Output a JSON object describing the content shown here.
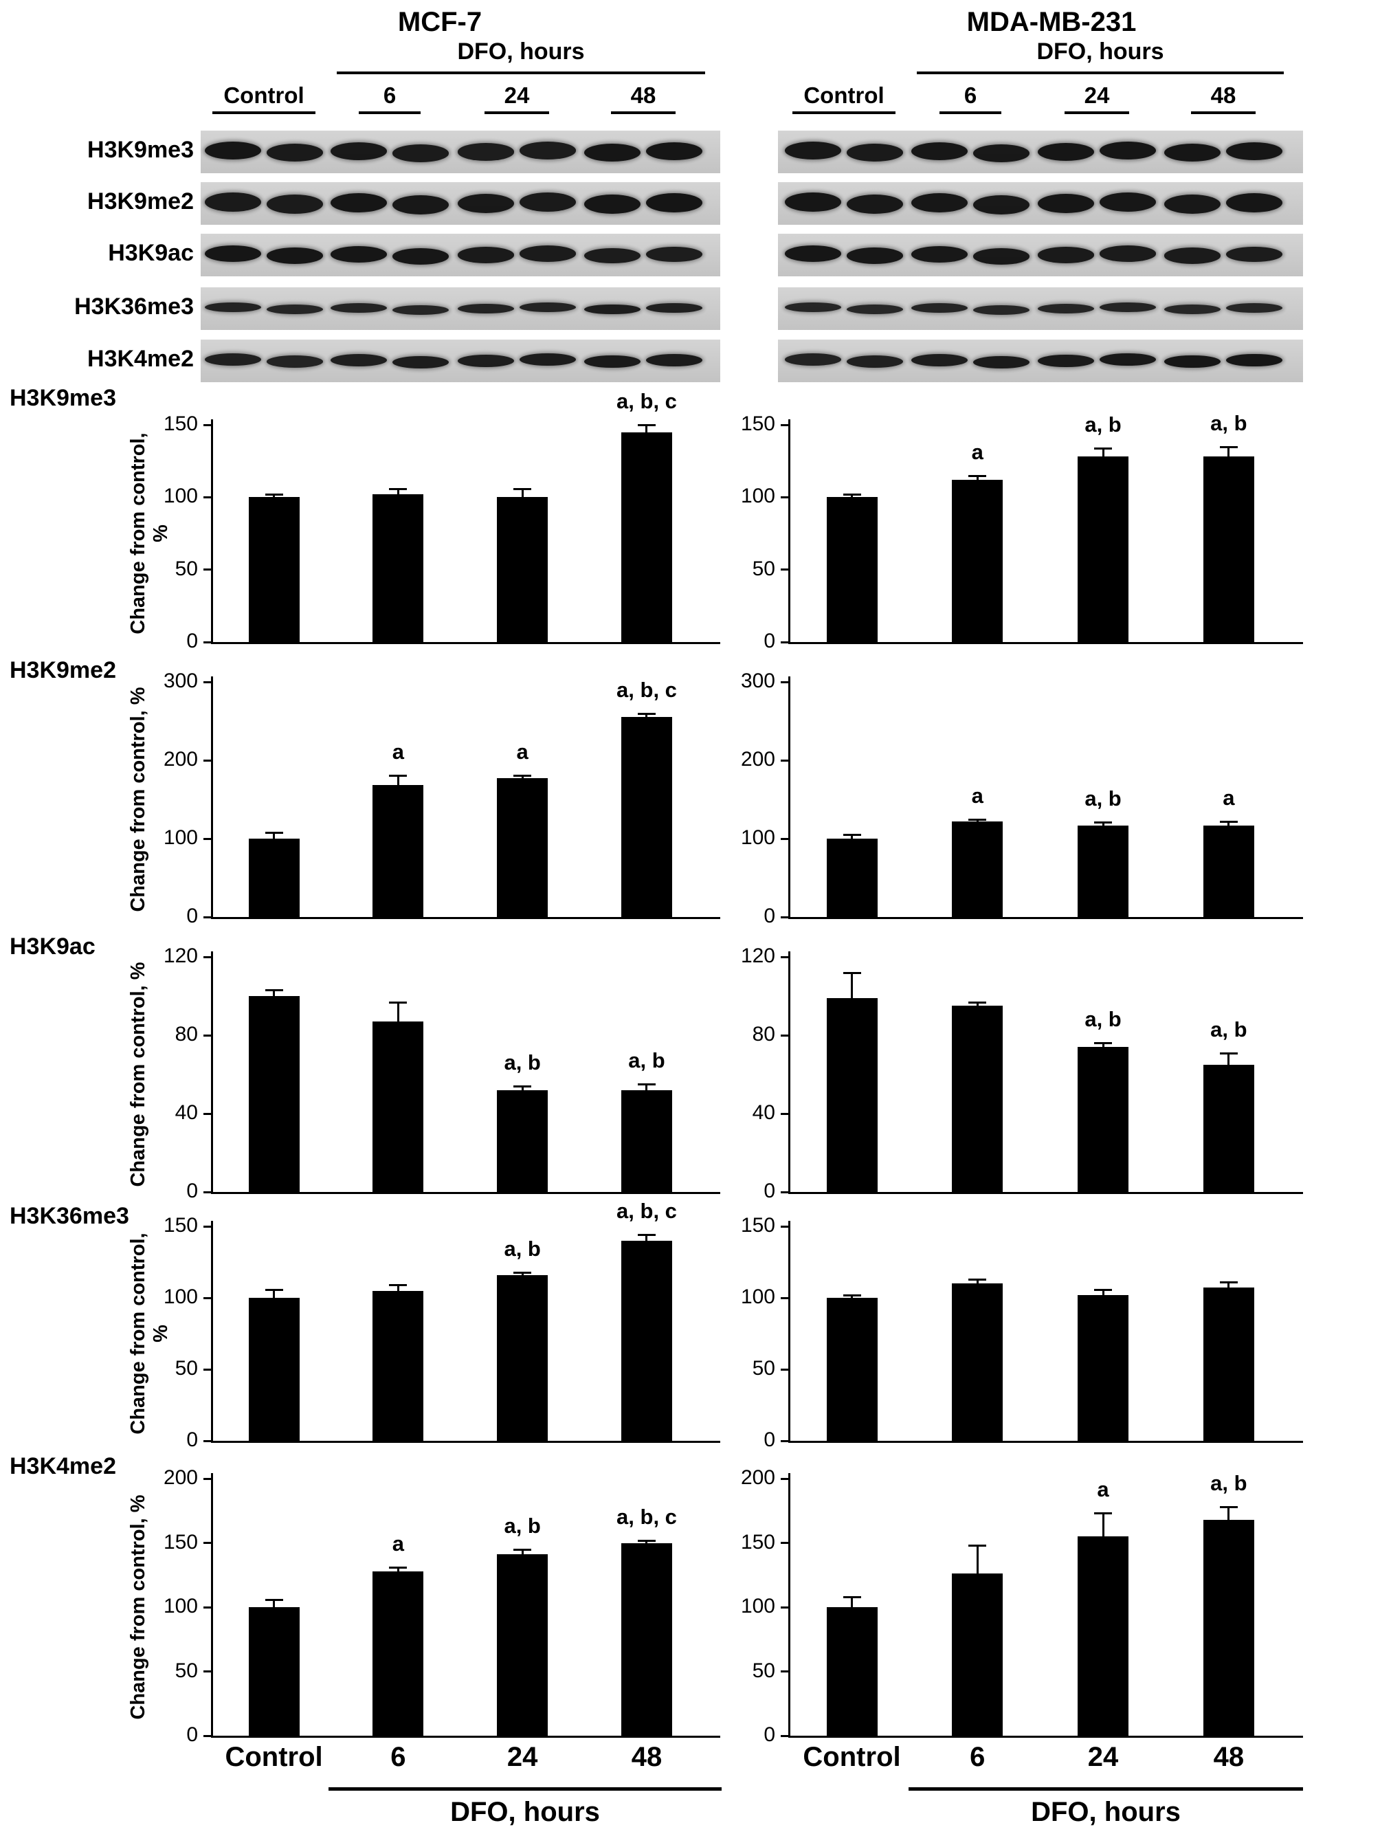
{
  "header": {
    "left_title": "MCF-7",
    "right_title": "MDA-MB-231",
    "dfo_label": "DFO, hours",
    "lanes": [
      "Control",
      "6",
      "24",
      "48"
    ]
  },
  "blots": {
    "rows": [
      {
        "label": "H3K9me3",
        "left": [
          0.95,
          0.9,
          0.92,
          0.88,
          0.85,
          0.86,
          0.97,
          0.96
        ],
        "right": [
          0.93,
          0.9,
          0.94,
          0.92,
          0.96,
          0.97,
          0.95,
          0.96
        ]
      },
      {
        "label": "H3K9me2",
        "left": [
          0.9,
          0.88,
          0.95,
          0.93,
          0.92,
          0.9,
          0.97,
          0.98
        ],
        "right": [
          0.95,
          0.93,
          0.94,
          0.92,
          0.95,
          0.94,
          0.93,
          0.95
        ]
      },
      {
        "label": "H3K9ac",
        "left": [
          0.97,
          0.96,
          0.95,
          0.94,
          0.9,
          0.88,
          0.86,
          0.85
        ],
        "right": [
          0.95,
          0.94,
          0.93,
          0.92,
          0.9,
          0.89,
          0.88,
          0.87
        ]
      },
      {
        "label": "H3K36me3",
        "left": [
          0.75,
          0.72,
          0.74,
          0.73,
          0.76,
          0.75,
          0.85,
          0.8
        ],
        "right": [
          0.72,
          0.7,
          0.73,
          0.71,
          0.72,
          0.74,
          0.7,
          0.71
        ]
      },
      {
        "label": "H3K4me2",
        "left": [
          0.8,
          0.75,
          0.82,
          0.85,
          0.84,
          0.86,
          0.9,
          0.88
        ],
        "right": [
          0.78,
          0.8,
          0.85,
          0.88,
          0.9,
          0.92,
          0.95,
          0.96
        ]
      }
    ]
  },
  "chart_data": [
    {
      "type": "bar",
      "row_label": "H3K9me3",
      "ylabel": "Change from control, %",
      "categories": [
        "Control",
        "6",
        "24",
        "48"
      ],
      "ylim": [
        0,
        150
      ],
      "yticks": [
        0,
        50,
        100,
        150
      ],
      "panels": [
        {
          "name": "MCF-7",
          "values": [
            100,
            102,
            100,
            145
          ],
          "errors": [
            2,
            4,
            6,
            5
          ],
          "annotations": [
            "",
            "",
            "",
            "a, b, c"
          ]
        },
        {
          "name": "MDA-MB-231",
          "values": [
            100,
            112,
            128,
            128
          ],
          "errors": [
            2,
            3,
            6,
            7
          ],
          "annotations": [
            "",
            "a",
            "a, b",
            "a, b"
          ]
        }
      ]
    },
    {
      "type": "bar",
      "row_label": "H3K9me2",
      "ylabel": "Change from control, %",
      "categories": [
        "Control",
        "6",
        "24",
        "48"
      ],
      "ylim": [
        0,
        300
      ],
      "yticks": [
        0,
        100,
        200,
        300
      ],
      "panels": [
        {
          "name": "MCF-7",
          "values": [
            100,
            168,
            177,
            255
          ],
          "errors": [
            8,
            13,
            4,
            5
          ],
          "annotations": [
            "",
            "a",
            "a",
            "a, b, c"
          ]
        },
        {
          "name": "MDA-MB-231",
          "values": [
            100,
            122,
            117,
            117
          ],
          "errors": [
            5,
            3,
            4,
            5
          ],
          "annotations": [
            "",
            "a",
            "a, b",
            "a"
          ]
        }
      ]
    },
    {
      "type": "bar",
      "row_label": "H3K9ac",
      "ylabel": "Change from control, %",
      "categories": [
        "Control",
        "6",
        "24",
        "48"
      ],
      "ylim": [
        0,
        120
      ],
      "yticks": [
        0,
        40,
        80,
        120
      ],
      "panels": [
        {
          "name": "MCF-7",
          "values": [
            100,
            87,
            52,
            52
          ],
          "errors": [
            3,
            10,
            2,
            3
          ],
          "annotations": [
            "",
            "",
            "a, b",
            "a, b"
          ]
        },
        {
          "name": "MDA-MB-231",
          "values": [
            99,
            95,
            74,
            65
          ],
          "errors": [
            13,
            2,
            2,
            6
          ],
          "annotations": [
            "",
            "",
            "a, b",
            "a, b"
          ]
        }
      ]
    },
    {
      "type": "bar",
      "row_label": "H3K36me3",
      "ylabel": "Change from control, %",
      "categories": [
        "Control",
        "6",
        "24",
        "48"
      ],
      "ylim": [
        0,
        150
      ],
      "yticks": [
        0,
        50,
        100,
        150
      ],
      "panels": [
        {
          "name": "MCF-7",
          "values": [
            100,
            105,
            116,
            140
          ],
          "errors": [
            6,
            4,
            2,
            4
          ],
          "annotations": [
            "",
            "",
            "a, b",
            "a, b, c"
          ]
        },
        {
          "name": "MDA-MB-231",
          "values": [
            100,
            110,
            102,
            107
          ],
          "errors": [
            2,
            3,
            4,
            4
          ],
          "annotations": [
            "",
            "",
            "",
            ""
          ]
        }
      ]
    },
    {
      "type": "bar",
      "row_label": "H3K4me2",
      "ylabel": "Change from control, %",
      "categories": [
        "Control",
        "6",
        "24",
        "48"
      ],
      "ylim": [
        0,
        200
      ],
      "yticks": [
        0,
        50,
        100,
        150,
        200
      ],
      "panels": [
        {
          "name": "MCF-7",
          "values": [
            100,
            128,
            141,
            150
          ],
          "errors": [
            6,
            3,
            4,
            2
          ],
          "annotations": [
            "",
            "a",
            "a, b",
            "a, b, c"
          ]
        },
        {
          "name": "MDA-MB-231",
          "values": [
            100,
            126,
            155,
            168
          ],
          "errors": [
            8,
            22,
            18,
            10
          ],
          "annotations": [
            "",
            "",
            "a",
            "a, b"
          ]
        }
      ]
    }
  ],
  "footer": {
    "categories": [
      "Control",
      "6",
      "24",
      "48"
    ],
    "dfo_label": "DFO, hours"
  },
  "colors": {
    "bar": "#000000",
    "band": "#141414",
    "strip_bg_light": "#d4d4d4",
    "strip_bg_dark": "#c3c3c3",
    "axis": "#000000"
  }
}
